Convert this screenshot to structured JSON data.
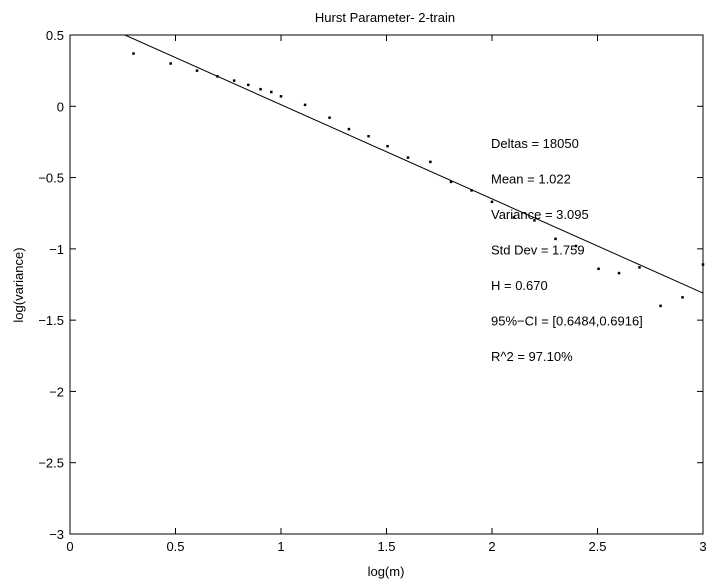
{
  "chart_data": {
    "type": "scatter",
    "title": "Hurst Parameter- 2-train",
    "xlabel": "log(m)",
    "ylabel": "log(variance)",
    "xlim": [
      0,
      3
    ],
    "ylim": [
      -3,
      0.5
    ],
    "grid": false,
    "x_ticks": [
      0,
      0.5,
      1,
      1.5,
      2,
      2.5,
      3
    ],
    "y_ticks": [
      -3,
      -2.5,
      -2,
      -1.5,
      -1,
      -0.5,
      0,
      0.5
    ],
    "x_tick_labels": [
      "0",
      "0.5",
      "1",
      "1.5",
      "2",
      "2.5",
      "3"
    ],
    "y_tick_labels": [
      "−3",
      "−2.5",
      "−2",
      "−1.5",
      "−1",
      "−0.5",
      "0",
      "0.5"
    ],
    "series": [
      {
        "type": "scatter",
        "x": [
          0.301,
          0.477,
          0.602,
          0.699,
          0.778,
          0.845,
          0.903,
          0.954,
          1.0,
          1.114,
          1.23,
          1.322,
          1.415,
          1.505,
          1.602,
          1.708,
          1.806,
          1.903,
          2.0,
          2.104,
          2.201,
          2.301,
          2.398,
          2.505,
          2.602,
          2.699,
          2.799,
          2.903,
          3.0
        ],
        "y": [
          0.37,
          0.3,
          0.25,
          0.21,
          0.18,
          0.15,
          0.12,
          0.1,
          0.07,
          0.01,
          -0.08,
          -0.16,
          -0.21,
          -0.28,
          -0.36,
          -0.39,
          -0.53,
          -0.59,
          -0.67,
          -0.78,
          -0.8,
          -0.93,
          -0.98,
          -1.14,
          -1.17,
          -1.13,
          -1.4,
          -1.34,
          -1.11
        ]
      },
      {
        "type": "line",
        "x": [
          0.26,
          3.0
        ],
        "y": [
          0.5,
          -1.31
        ]
      }
    ],
    "annotations": [
      "Deltas = 18050",
      "Mean = 1.022",
      "Variance = 3.095",
      "Std Dev = 1.759",
      "H = 0.670",
      "95%−CI = [0.6484,0.6916]",
      "R^2 = 97.10%"
    ]
  }
}
